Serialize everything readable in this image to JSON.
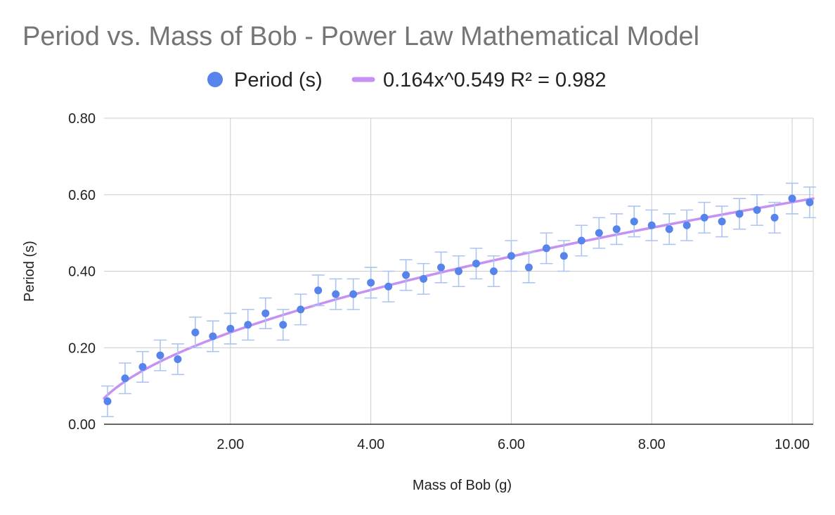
{
  "chart_data": {
    "type": "scatter",
    "title": "Period vs. Mass of Bob - Power Law Mathematical Model",
    "xlabel": "Mass of Bob (g)",
    "ylabel": "Period (s)",
    "xlim": [
      0.2,
      10.3
    ],
    "ylim": [
      0,
      0.8
    ],
    "x_ticks": [
      2,
      4,
      6,
      8,
      10
    ],
    "x_tick_labels": [
      "2.00",
      "4.00",
      "6.00",
      "8.00",
      "10.00"
    ],
    "y_ticks": [
      0,
      0.2,
      0.4,
      0.6,
      0.8
    ],
    "y_tick_labels": [
      "0.00",
      "0.20",
      "0.40",
      "0.60",
      "0.80"
    ],
    "grid": true,
    "legend_position": "top-center",
    "series": [
      {
        "name": "Period (s)",
        "kind": "points",
        "color": "#5684EA",
        "error_bar": 0.04,
        "error_bar_color": "#ADC4F3",
        "x": [
          0.25,
          0.5,
          0.75,
          1.0,
          1.25,
          1.5,
          1.75,
          2.0,
          2.25,
          2.5,
          2.75,
          3.0,
          3.25,
          3.5,
          3.75,
          4.0,
          4.25,
          4.5,
          4.75,
          5.0,
          5.25,
          5.5,
          5.75,
          6.0,
          6.25,
          6.5,
          6.75,
          7.0,
          7.25,
          7.5,
          7.75,
          8.0,
          8.25,
          8.5,
          8.75,
          9.0,
          9.25,
          9.5,
          9.75,
          10.0,
          10.25
        ],
        "y": [
          0.06,
          0.12,
          0.15,
          0.18,
          0.17,
          0.24,
          0.23,
          0.25,
          0.26,
          0.29,
          0.26,
          0.3,
          0.35,
          0.34,
          0.34,
          0.37,
          0.36,
          0.39,
          0.38,
          0.41,
          0.4,
          0.42,
          0.4,
          0.44,
          0.41,
          0.46,
          0.44,
          0.48,
          0.5,
          0.51,
          0.53,
          0.52,
          0.51,
          0.52,
          0.54,
          0.53,
          0.55,
          0.56,
          0.54,
          0.59,
          0.58
        ]
      },
      {
        "name": "0.164x^0.549 R² = 0.982",
        "kind": "trendline",
        "model": "power",
        "coefficient": 0.164,
        "exponent": 0.549,
        "r_squared": 0.982,
        "color": "#C591F2"
      }
    ]
  }
}
